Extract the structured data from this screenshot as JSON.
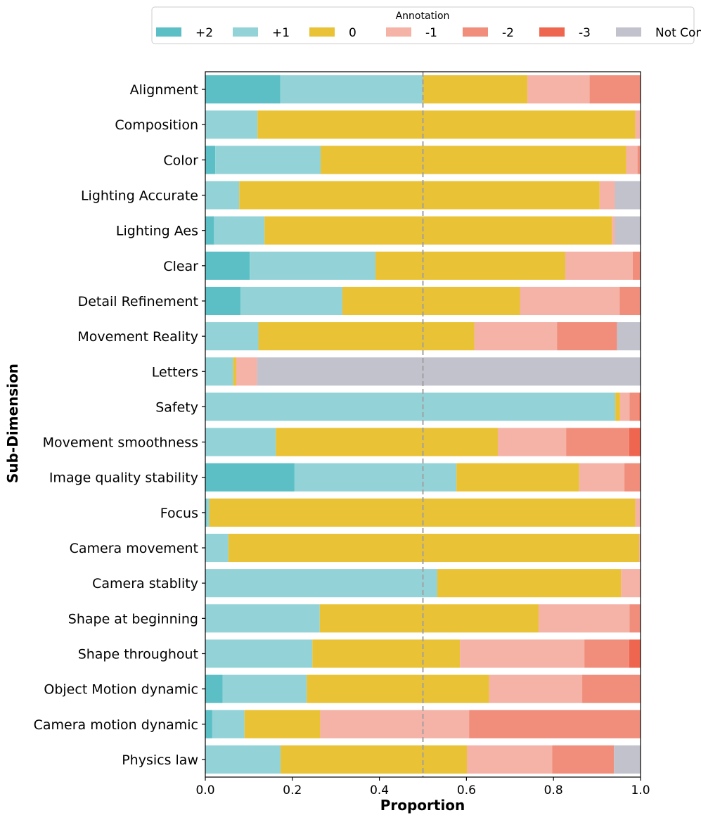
{
  "chart_data": {
    "type": "bar",
    "orientation": "horizontal",
    "stacked": true,
    "xlabel": "Proportion",
    "ylabel": "Sub-Dimension",
    "xlim": [
      0,
      1
    ],
    "xticks": [
      "0.0",
      "0.2",
      "0.4",
      "0.6",
      "0.8",
      "1.0"
    ],
    "reference_line": {
      "x": 0.5,
      "style": "dashed"
    },
    "grid": false,
    "legend": {
      "title": "Annotation",
      "placement": "top-center",
      "columns": 7
    },
    "categories": [
      "Alignment",
      "Composition",
      "Color",
      "Lighting Accurate",
      "Lighting Aes",
      "Clear",
      "Detail Refinement",
      "Movement Reality",
      "Letters",
      "Safety",
      "Movement smoothness",
      "Image quality stability",
      "Focus",
      "Camera movement",
      "Camera stablity",
      "Shape at beginning",
      "Shape throughout",
      "Object Motion dynamic",
      "Camera motion dynamic",
      "Physics law"
    ],
    "series": [
      {
        "name": "+2",
        "color": "#5bbfc5",
        "values": [
          0.172,
          0,
          0.023,
          0,
          0.02,
          0.102,
          0.081,
          0,
          0,
          0,
          0,
          0.205,
          0.003,
          0,
          0,
          0,
          0,
          0.04,
          0.016,
          0
        ]
      },
      {
        "name": "+1",
        "color": "#93d3d8",
        "values": [
          0.328,
          0.12,
          0.242,
          0.078,
          0.116,
          0.289,
          0.234,
          0.122,
          0.064,
          0.942,
          0.162,
          0.372,
          0.006,
          0.053,
          0.533,
          0.263,
          0.246,
          0.193,
          0.074,
          0.173
        ]
      },
      {
        "name": "0",
        "color": "#e9c235",
        "values": [
          0.24,
          0.868,
          0.702,
          0.828,
          0.798,
          0.436,
          0.408,
          0.496,
          0.007,
          0.011,
          0.51,
          0.282,
          0.979,
          0.944,
          0.422,
          0.503,
          0.339,
          0.419,
          0.174,
          0.428
        ]
      },
      {
        "name": "-1",
        "color": "#f5b2a6",
        "values": [
          0.143,
          0.012,
          0.026,
          0.035,
          0.007,
          0.155,
          0.229,
          0.19,
          0.048,
          0.022,
          0.157,
          0.104,
          0.012,
          0.003,
          0.045,
          0.209,
          0.286,
          0.214,
          0.342,
          0.196
        ]
      },
      {
        "name": "-2",
        "color": "#f08e7b",
        "values": [
          0.117,
          0,
          0.007,
          0,
          0,
          0.018,
          0.048,
          0.138,
          0,
          0.022,
          0.145,
          0.037,
          0,
          0,
          0,
          0.025,
          0.103,
          0.134,
          0.394,
          0.142
        ]
      },
      {
        "name": "-3",
        "color": "#ef6650",
        "values": [
          0,
          0,
          0,
          0,
          0,
          0,
          0,
          0,
          0,
          0.003,
          0.026,
          0,
          0,
          0,
          0,
          0,
          0.026,
          0,
          0,
          0
        ]
      },
      {
        "name": "Not Contain",
        "color": "#c2c2cc",
        "values": [
          0,
          0,
          0,
          0.059,
          0.059,
          0,
          0,
          0.054,
          0.881,
          0,
          0,
          0,
          0,
          0,
          0,
          0,
          0,
          0,
          0,
          0.061
        ]
      }
    ]
  }
}
